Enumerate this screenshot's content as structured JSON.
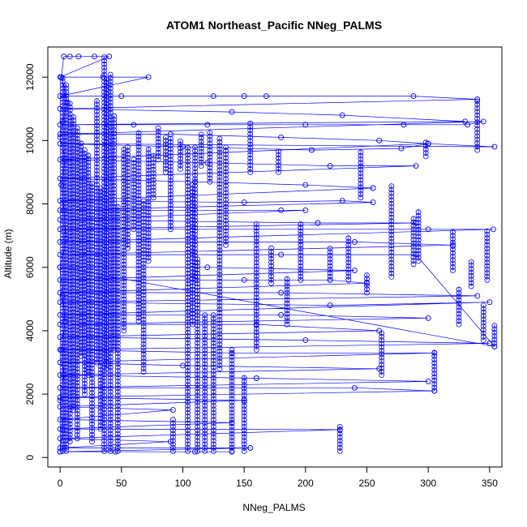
{
  "chart_data": {
    "type": "scatter",
    "title": "ATOM1 Northeast_Pacific NNeg_PALMS",
    "xlabel": "NNeg_PALMS",
    "ylabel": "Altitude (m)",
    "xlim": [
      -10,
      360
    ],
    "ylim": [
      -300,
      12950
    ],
    "x_ticks": [
      0,
      50,
      100,
      150,
      200,
      250,
      300,
      350
    ],
    "y_ticks": [
      0,
      2000,
      4000,
      6000,
      8000,
      10000,
      12000
    ],
    "grid": false,
    "legend": "none",
    "point_shape": "open-circle",
    "connected": true,
    "color": "#0000ff",
    "series": [
      {
        "points": [
          [
            0,
            180
          ],
          [
            2,
            900
          ],
          [
            0,
            1800
          ],
          [
            3,
            2600
          ],
          [
            1,
            3400
          ],
          [
            4,
            4300
          ],
          [
            2,
            5100
          ],
          [
            0,
            6000
          ],
          [
            5,
            6900
          ],
          [
            3,
            7800
          ],
          [
            1,
            8600
          ],
          [
            4,
            9400
          ],
          [
            0,
            10100
          ],
          [
            2,
            10600
          ],
          [
            6,
            11200
          ],
          [
            1,
            12000
          ],
          [
            3,
            12650
          ],
          [
            8,
            12650
          ],
          [
            15,
            12650
          ],
          [
            28,
            12650
          ],
          [
            40,
            12650
          ],
          [
            0,
            12000
          ],
          [
            35,
            12000
          ],
          [
            72,
            12000
          ],
          [
            0,
            11400
          ],
          [
            50,
            11400
          ],
          [
            125,
            11400
          ],
          [
            150,
            11400
          ],
          [
            168,
            11400
          ],
          [
            288,
            11400
          ],
          [
            340,
            11300
          ],
          [
            0,
            11000
          ],
          [
            140,
            10900
          ],
          [
            230,
            10800
          ],
          [
            330,
            10600
          ],
          [
            0,
            10500
          ],
          [
            60,
            10500
          ],
          [
            120,
            10500
          ],
          [
            200,
            10500
          ],
          [
            280,
            10500
          ],
          [
            332,
            10500
          ],
          [
            345,
            10600
          ],
          [
            0,
            10200
          ],
          [
            90,
            10200
          ],
          [
            180,
            10100
          ],
          [
            260,
            10000
          ],
          [
            300,
            9900
          ],
          [
            354,
            9800
          ],
          [
            0,
            9900
          ],
          [
            100,
            9800
          ],
          [
            205,
            9700
          ],
          [
            278,
            9750
          ],
          [
            300,
            9900
          ],
          [
            0,
            9400
          ],
          [
            120,
            9300
          ],
          [
            220,
            9200
          ],
          [
            290,
            9200
          ],
          [
            0,
            8800
          ],
          [
            110,
            8700
          ],
          [
            200,
            8600
          ],
          [
            255,
            8500
          ],
          [
            0,
            8100
          ],
          [
            150,
            8050
          ],
          [
            230,
            8100
          ],
          [
            255,
            8050
          ],
          [
            0,
            7800
          ],
          [
            180,
            7800
          ],
          [
            200,
            7800
          ],
          [
            0,
            7500
          ],
          [
            210,
            7400
          ],
          [
            290,
            7400
          ],
          [
            0,
            7200
          ],
          [
            300,
            7200
          ],
          [
            353,
            7200
          ],
          [
            0,
            6800
          ],
          [
            240,
            6800
          ],
          [
            320,
            6700
          ],
          [
            0,
            6400
          ],
          [
            180,
            6400
          ],
          [
            290,
            6400
          ],
          [
            354,
            3500
          ],
          [
            0,
            6000
          ],
          [
            120,
            6000
          ],
          [
            240,
            5900
          ],
          [
            0,
            5600
          ],
          [
            150,
            5600
          ],
          [
            220,
            5600
          ],
          [
            250,
            5500
          ],
          [
            0,
            5200
          ],
          [
            180,
            5200
          ],
          [
            340,
            5100
          ],
          [
            0,
            4900
          ],
          [
            220,
            4800
          ],
          [
            350,
            4900
          ],
          [
            0,
            4500
          ],
          [
            180,
            4500
          ],
          [
            300,
            4400
          ],
          [
            0,
            4200
          ],
          [
            160,
            4200
          ],
          [
            260,
            4000
          ],
          [
            0,
            3800
          ],
          [
            200,
            3700
          ],
          [
            350,
            3600
          ],
          [
            0,
            3400
          ],
          [
            140,
            3300
          ],
          [
            305,
            3300
          ],
          [
            0,
            3000
          ],
          [
            100,
            2900
          ],
          [
            260,
            2800
          ],
          [
            0,
            2600
          ],
          [
            160,
            2500
          ],
          [
            300,
            2400
          ],
          [
            0,
            2200
          ],
          [
            240,
            2200
          ],
          [
            305,
            2100
          ],
          [
            0,
            1900
          ],
          [
            150,
            1800
          ],
          [
            0,
            1600
          ],
          [
            92,
            1500
          ],
          [
            0,
            1200
          ],
          [
            140,
            1100
          ],
          [
            0,
            900
          ],
          [
            228,
            880
          ],
          [
            0,
            600
          ],
          [
            90,
            500
          ],
          [
            0,
            300
          ],
          [
            155,
            300
          ],
          [
            0,
            180
          ],
          [
            45,
            180
          ],
          [
            110,
            180
          ],
          [
            140,
            180
          ]
        ],
        "columns": [
          [
            2,
            200,
            12000
          ],
          [
            5,
            200,
            11800
          ],
          [
            8,
            500,
            11200
          ],
          [
            11,
            1500,
            10800
          ],
          [
            14,
            600,
            10400
          ],
          [
            17,
            3200,
            10000
          ],
          [
            20,
            2000,
            9700
          ],
          [
            23,
            2600,
            9600
          ],
          [
            26,
            500,
            8700
          ],
          [
            30,
            3000,
            11300
          ],
          [
            33,
            900,
            8500
          ],
          [
            36,
            200,
            12650
          ],
          [
            38,
            2800,
            12000
          ],
          [
            41,
            200,
            12100
          ],
          [
            44,
            3400,
            10800
          ],
          [
            47,
            200,
            8000
          ],
          [
            52,
            4000,
            9800
          ],
          [
            55,
            6600,
            9800
          ],
          [
            60,
            7200,
            9400
          ],
          [
            64,
            4300,
            10300
          ],
          [
            68,
            2700,
            8100
          ],
          [
            72,
            6200,
            9800
          ],
          [
            76,
            8200,
            9600
          ],
          [
            80,
            9400,
            10400
          ],
          [
            86,
            9000,
            10100
          ],
          [
            90,
            7200,
            10100
          ],
          [
            92,
            200,
            1200
          ],
          [
            98,
            9100,
            10000
          ],
          [
            104,
            200,
            9800
          ],
          [
            108,
            4200,
            8600
          ],
          [
            110,
            5600,
            9800
          ],
          [
            112,
            200,
            6300
          ],
          [
            115,
            9200,
            10200
          ],
          [
            118,
            200,
            4500
          ],
          [
            122,
            8700,
            10300
          ],
          [
            125,
            200,
            4500
          ],
          [
            130,
            2800,
            10100
          ],
          [
            135,
            6700,
            9800
          ],
          [
            140,
            200,
            3400
          ],
          [
            150,
            200,
            2600
          ],
          [
            155,
            9000,
            10600
          ],
          [
            160,
            3400,
            7400
          ],
          [
            172,
            5500,
            6600
          ],
          [
            178,
            9000,
            9700
          ],
          [
            185,
            4200,
            5700
          ],
          [
            196,
            5600,
            7400
          ],
          [
            220,
            5600,
            6600
          ],
          [
            228,
            200,
            1000
          ],
          [
            235,
            5600,
            7000
          ],
          [
            245,
            8200,
            9700
          ],
          [
            250,
            5200,
            5800
          ],
          [
            262,
            2600,
            4000
          ],
          [
            270,
            5700,
            8600
          ],
          [
            288,
            6100,
            7600
          ],
          [
            292,
            6200,
            7800
          ],
          [
            298,
            9500,
            10000
          ],
          [
            305,
            2100,
            3400
          ],
          [
            320,
            5900,
            7200
          ],
          [
            325,
            4200,
            5400
          ],
          [
            335,
            5400,
            6200
          ],
          [
            340,
            9700,
            11300
          ],
          [
            345,
            3700,
            4800
          ],
          [
            348,
            5600,
            7200
          ],
          [
            354,
            3500,
            4200
          ]
        ]
      }
    ]
  }
}
